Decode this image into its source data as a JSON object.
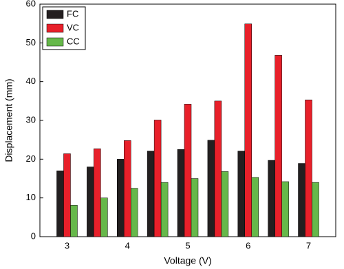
{
  "chart_data": {
    "type": "bar",
    "x": [
      3,
      3.5,
      4,
      4.5,
      5,
      5.5,
      6,
      6.5,
      7
    ],
    "series": [
      {
        "name": "FC",
        "color": "#231f20",
        "values": [
          17,
          18,
          20,
          22.1,
          22.5,
          24.9,
          22.1,
          19.7,
          18.9
        ]
      },
      {
        "name": "VC",
        "color": "#e8202a",
        "values": [
          21.4,
          22.7,
          24.8,
          30.1,
          34.2,
          35,
          54.9,
          46.8,
          35.3
        ]
      },
      {
        "name": "CC",
        "color": "#66b84a",
        "values": [
          8.1,
          10,
          12.5,
          14,
          15,
          16.8,
          15.3,
          14.2,
          14
        ]
      }
    ],
    "x_label": "Voltage (V)",
    "y_label": "Displacement (mm)",
    "xlim": [
      2.55,
      7.45
    ],
    "xticks": [
      3,
      4,
      5,
      6,
      7
    ],
    "ylim": [
      0,
      60
    ],
    "yticks": [
      0,
      10,
      20,
      30,
      40,
      50,
      60
    ],
    "legend": "upper-left"
  }
}
